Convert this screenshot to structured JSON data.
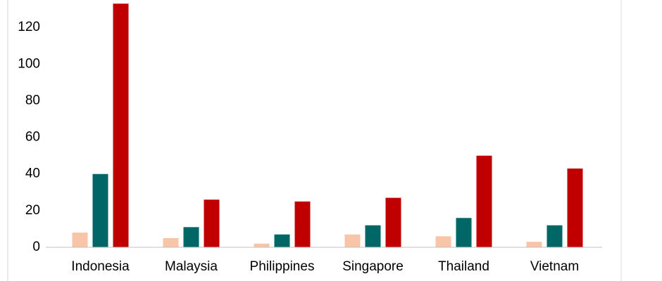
{
  "chart_data": {
    "type": "bar",
    "categories": [
      "Indonesia",
      "Malaysia",
      "Philippines",
      "Singapore",
      "Thailand",
      "Vietnam"
    ],
    "series": [
      {
        "color": "#f8c5a8",
        "values": [
          8,
          5,
          2,
          7,
          6,
          3
        ]
      },
      {
        "color": "#006666",
        "values": [
          40,
          11,
          7,
          12,
          16,
          12
        ]
      },
      {
        "color": "#c00000",
        "values": [
          133,
          26,
          25,
          27,
          50,
          43
        ]
      }
    ],
    "ylim": [
      0,
      135
    ],
    "yticks": [
      0,
      20,
      40,
      60,
      80,
      100,
      120
    ],
    "grid": false
  }
}
